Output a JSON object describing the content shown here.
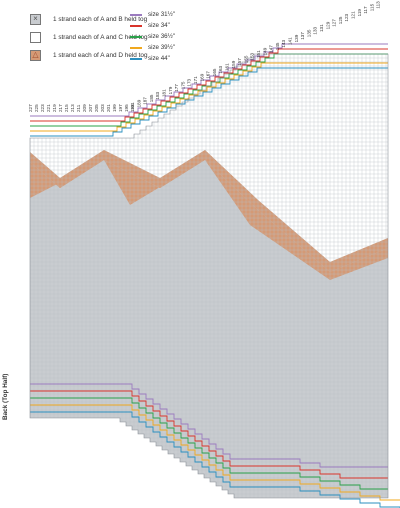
{
  "key": [
    {
      "symbol": "×",
      "label": "1 strand each of A and B held tog",
      "fill": "#c9ccd0",
      "icon": "x-icon"
    },
    {
      "symbol": "",
      "label": "1 strand each of A and C held tog",
      "fill": "#ffffff",
      "icon": "blank-square-icon"
    },
    {
      "symbol": "△",
      "label": "1 strand each of A and D held tog",
      "fill": "#d49a76",
      "icon": "triangle-icon"
    }
  ],
  "sizes": [
    {
      "label": "size 31½\"",
      "color": "#9b7bbf"
    },
    {
      "label": "size 34\"",
      "color": "#d9342b"
    },
    {
      "label": "size 36½\"",
      "color": "#2aa14a"
    },
    {
      "label": "size 39½\"",
      "color": "#f0a81e"
    },
    {
      "label": "size 44\"",
      "color": "#2a8fbf"
    }
  ],
  "row_numbers_left": [
    "227",
    "225",
    "223",
    "221",
    "219",
    "217",
    "215",
    "213",
    "211",
    "209",
    "207",
    "205",
    "203",
    "201",
    "199",
    "197",
    "195",
    "193"
  ],
  "row_numbers_right": [
    "191",
    "189",
    "187",
    "185",
    "183",
    "181",
    "179",
    "177",
    "175",
    "173",
    "171",
    "169",
    "167",
    "165",
    "163",
    "161",
    "159",
    "157",
    "155",
    "153",
    "151",
    "149",
    "147",
    "145",
    "143",
    "141",
    "139",
    "137",
    "135",
    "133",
    "131",
    "129",
    "127",
    "125",
    "123",
    "121",
    "119",
    "117",
    "115",
    "113"
  ],
  "side_label": "Back (Top Half)",
  "colors": {
    "grid": "#b9bec4",
    "gray": "#c9ccd0",
    "rust": "#d49a76"
  }
}
